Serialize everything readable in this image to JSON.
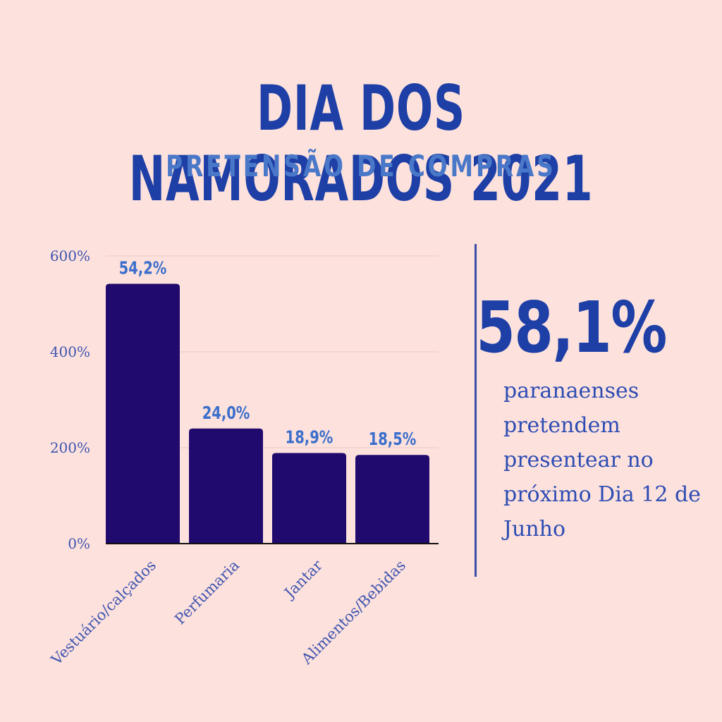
{
  "header": {
    "title": "DIA DOS NAMORADOS 2021",
    "subtitle": "PRETENSÃO DE COMPRAS"
  },
  "stat": {
    "value": "58,1%",
    "description": "paranaenses pretendem presentear no próximo Dia 12 de Junho"
  },
  "colors": {
    "background": "#fde1dd",
    "bar": "#200a6e",
    "title": "#1d3fa6",
    "subtitle": "#4a78c9",
    "value_label": "#3b6fcb"
  },
  "chart_data": {
    "type": "bar",
    "categories": [
      "Vestuário/calçados",
      "Perfumaria",
      "Jantar",
      "Alimentos/Bebidas"
    ],
    "values": [
      542,
      240,
      189,
      185
    ],
    "value_labels": [
      "54,2%",
      "24,0%",
      "18,9%",
      "18,5%"
    ],
    "y_ticks": [
      0,
      200,
      400,
      600
    ],
    "y_tick_labels": [
      "0%",
      "200%",
      "400%",
      "600%"
    ],
    "ylim": [
      0,
      600
    ],
    "grid": true,
    "legend": "none",
    "title": "",
    "xlabel": "",
    "ylabel": ""
  }
}
